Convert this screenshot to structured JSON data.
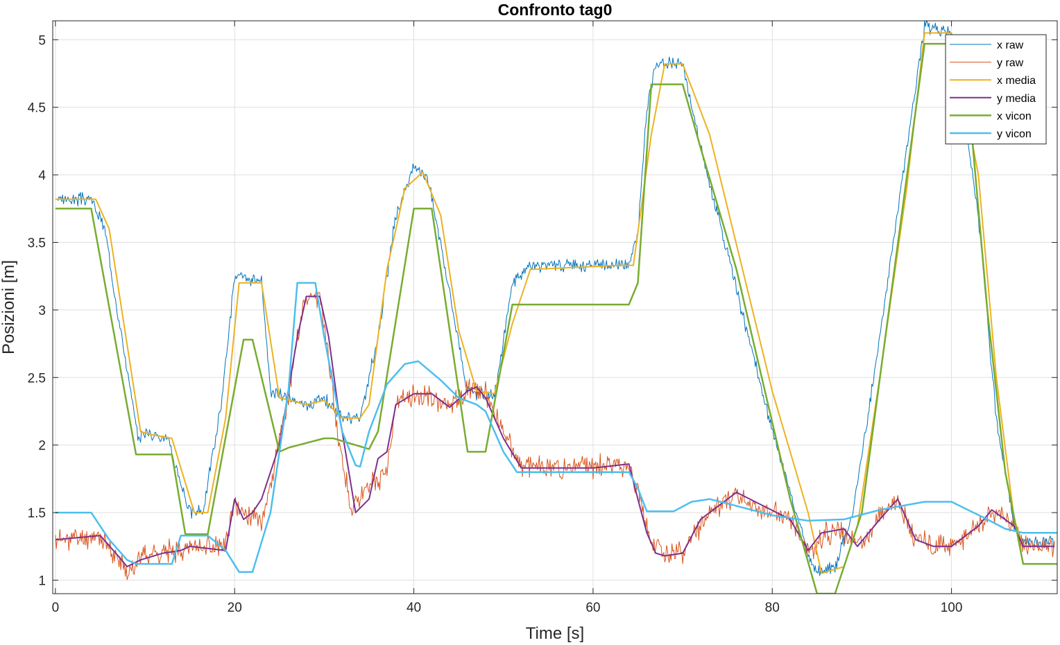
{
  "chart_data": {
    "type": "line",
    "title": "Confronto tag0",
    "xlabel": "Time [s]",
    "ylabel": "Posizioni [m]",
    "xlim": [
      -0.3,
      111.8
    ],
    "ylim": [
      0.9,
      5.14
    ],
    "xticks": [
      0,
      20,
      40,
      60,
      80,
      100
    ],
    "yticks": [
      1,
      1.5,
      2,
      2.5,
      3,
      3.5,
      4,
      4.5,
      5
    ],
    "ytick_labels": [
      "1",
      "1.5",
      "2",
      "2.5",
      "3",
      "3.5",
      "4",
      "4.5",
      "5"
    ],
    "grid": true,
    "legend_position": "top-right",
    "series": [
      {
        "name": "x raw",
        "color": "#0072BD",
        "width": 1,
        "noise": 0.035,
        "seed": 3,
        "x": [
          0,
          4,
          5.5,
          9.2,
          10,
          12.5,
          15,
          16.5,
          18.5,
          20,
          23,
          24,
          28,
          30,
          32,
          34,
          36,
          38,
          40,
          41.5,
          43,
          46,
          49,
          51,
          53,
          60,
          64,
          65,
          66,
          67,
          70,
          72,
          80,
          84,
          85,
          87,
          89,
          92,
          95,
          97,
          100,
          103,
          105,
          107,
          108,
          111.5
        ],
        "y": [
          3.82,
          3.82,
          3.6,
          2.05,
          2.1,
          2.05,
          1.5,
          1.52,
          2.3,
          3.25,
          3.2,
          2.4,
          2.3,
          2.35,
          2.2,
          2.2,
          2.8,
          3.7,
          4.05,
          4.0,
          3.5,
          2.4,
          2.35,
          3.2,
          3.33,
          3.33,
          3.34,
          3.55,
          4.5,
          4.82,
          4.82,
          4.2,
          2.1,
          1.2,
          1.05,
          1.1,
          1.5,
          2.8,
          4.2,
          5.1,
          5.05,
          3.7,
          2.2,
          1.4,
          1.28,
          1.28
        ]
      },
      {
        "name": "y raw",
        "color": "#D95319",
        "width": 1,
        "noise": 0.06,
        "seed": 11,
        "x": [
          0,
          5,
          7,
          8,
          10,
          12,
          15,
          19,
          20,
          21,
          23,
          24,
          26,
          27,
          28,
          29.5,
          30.5,
          31.5,
          33,
          35,
          37,
          38,
          40,
          42,
          44,
          46,
          48,
          50,
          52,
          60,
          64,
          65,
          66,
          67,
          68,
          70,
          72,
          74,
          76,
          79,
          82,
          84,
          86,
          88,
          90,
          92,
          94,
          96,
          98,
          100,
          103,
          105,
          107,
          108,
          111.5
        ],
        "y": [
          1.3,
          1.32,
          1.15,
          1.06,
          1.2,
          1.2,
          1.25,
          1.25,
          1.55,
          1.5,
          1.45,
          1.7,
          2.35,
          2.8,
          3.1,
          3.1,
          2.65,
          2.1,
          1.52,
          1.7,
          1.8,
          2.3,
          2.38,
          2.35,
          2.3,
          2.4,
          2.4,
          2.1,
          1.84,
          1.84,
          1.86,
          1.65,
          1.4,
          1.25,
          1.2,
          1.2,
          1.4,
          1.55,
          1.63,
          1.52,
          1.45,
          1.2,
          1.35,
          1.35,
          1.25,
          1.5,
          1.6,
          1.3,
          1.25,
          1.25,
          1.4,
          1.5,
          1.4,
          1.25,
          1.25
        ]
      },
      {
        "name": "x media",
        "color": "#EDB120",
        "width": 2,
        "noise": 0,
        "seed": 0,
        "x": [
          0,
          4.5,
          6,
          9.5,
          10.5,
          13,
          15.5,
          17,
          19,
          20.5,
          23,
          25,
          28,
          30,
          32,
          34,
          35,
          37,
          39,
          41,
          43,
          45,
          47,
          49,
          51,
          53,
          63,
          64.5,
          66.5,
          68,
          70,
          73,
          80,
          84,
          85.5,
          88,
          89.5,
          92,
          95,
          97,
          100,
          103,
          105,
          107,
          108,
          111.5
        ],
        "y": [
          3.82,
          3.82,
          3.6,
          2.1,
          2.08,
          2.05,
          1.5,
          1.5,
          2.2,
          3.2,
          3.2,
          2.35,
          2.3,
          2.33,
          2.2,
          2.2,
          2.3,
          3.3,
          3.9,
          4.02,
          3.7,
          2.85,
          2.4,
          2.38,
          2.9,
          3.3,
          3.33,
          3.33,
          4.3,
          4.82,
          4.82,
          4.3,
          2.4,
          1.5,
          1.05,
          1.1,
          1.4,
          2.5,
          3.9,
          5.05,
          5.05,
          4.0,
          2.5,
          1.45,
          1.25,
          1.25
        ]
      },
      {
        "name": "y media",
        "color": "#7E2F8E",
        "width": 2,
        "noise": 0,
        "seed": 0,
        "x": [
          0,
          5,
          7,
          8,
          9.5,
          12,
          14,
          15,
          19,
          20,
          21,
          22,
          23,
          25,
          27,
          28,
          29.5,
          30.5,
          31.5,
          32.5,
          33.5,
          35,
          36,
          37,
          38,
          40,
          42,
          44,
          46,
          47,
          48,
          50,
          52,
          60,
          64,
          65,
          66,
          67,
          68,
          70,
          72,
          74,
          76,
          79,
          82,
          84,
          85.5,
          88,
          89.5,
          92,
          94,
          96,
          98,
          100,
          103,
          104.5,
          107,
          108,
          111.5
        ],
        "y": [
          1.3,
          1.33,
          1.18,
          1.1,
          1.15,
          1.2,
          1.22,
          1.25,
          1.22,
          1.6,
          1.45,
          1.5,
          1.6,
          2.0,
          2.8,
          3.1,
          3.1,
          2.8,
          2.3,
          1.9,
          1.5,
          1.6,
          1.9,
          1.95,
          2.3,
          2.38,
          2.38,
          2.28,
          2.4,
          2.43,
          2.35,
          2.05,
          1.83,
          1.83,
          1.86,
          1.6,
          1.35,
          1.2,
          1.18,
          1.2,
          1.45,
          1.55,
          1.65,
          1.55,
          1.45,
          1.22,
          1.35,
          1.38,
          1.25,
          1.45,
          1.6,
          1.3,
          1.25,
          1.25,
          1.4,
          1.52,
          1.4,
          1.25,
          1.25
        ]
      },
      {
        "name": "x vicon",
        "color": "#77AC30",
        "width": 2.5,
        "noise": 0,
        "seed": 0,
        "x": [
          0,
          4,
          9,
          13,
          14.5,
          17,
          21,
          22,
          25,
          26,
          30,
          31,
          35,
          36,
          40,
          42,
          46,
          48,
          51,
          64,
          65,
          66.5,
          70,
          72,
          76,
          82,
          85,
          87,
          88.5,
          90,
          97,
          100,
          102,
          104,
          106,
          108,
          111.8
        ],
        "y": [
          3.75,
          3.75,
          1.93,
          1.93,
          1.34,
          1.34,
          2.78,
          2.78,
          1.95,
          1.98,
          2.05,
          2.05,
          1.97,
          2.1,
          3.75,
          3.75,
          1.95,
          1.95,
          3.04,
          3.04,
          3.2,
          4.67,
          4.67,
          4.2,
          3.3,
          1.6,
          0.9,
          0.9,
          1.2,
          1.5,
          4.97,
          4.97,
          4.5,
          3.0,
          1.8,
          1.12,
          1.12
        ]
      },
      {
        "name": "y vicon",
        "color": "#4DBEEE",
        "width": 2.5,
        "noise": 0,
        "seed": 0,
        "x": [
          0,
          4,
          6,
          8,
          9,
          13,
          14,
          17,
          19,
          20.5,
          22,
          24,
          26,
          27,
          29,
          30,
          32,
          33.5,
          34,
          35,
          37,
          39,
          40.5,
          43,
          45,
          47,
          48,
          50,
          51.5,
          64,
          65,
          66,
          69,
          71,
          73,
          76,
          80,
          84,
          88,
          92,
          97,
          100,
          104,
          106,
          108,
          111.8
        ],
        "y": [
          1.5,
          1.5,
          1.3,
          1.15,
          1.12,
          1.12,
          1.33,
          1.33,
          1.22,
          1.06,
          1.06,
          1.5,
          2.4,
          3.2,
          3.2,
          2.8,
          2.1,
          1.85,
          1.84,
          2.1,
          2.45,
          2.6,
          2.62,
          2.48,
          2.35,
          2.3,
          2.25,
          1.95,
          1.8,
          1.8,
          1.68,
          1.51,
          1.51,
          1.58,
          1.6,
          1.55,
          1.48,
          1.44,
          1.45,
          1.52,
          1.58,
          1.58,
          1.45,
          1.38,
          1.35,
          1.35
        ]
      }
    ]
  }
}
